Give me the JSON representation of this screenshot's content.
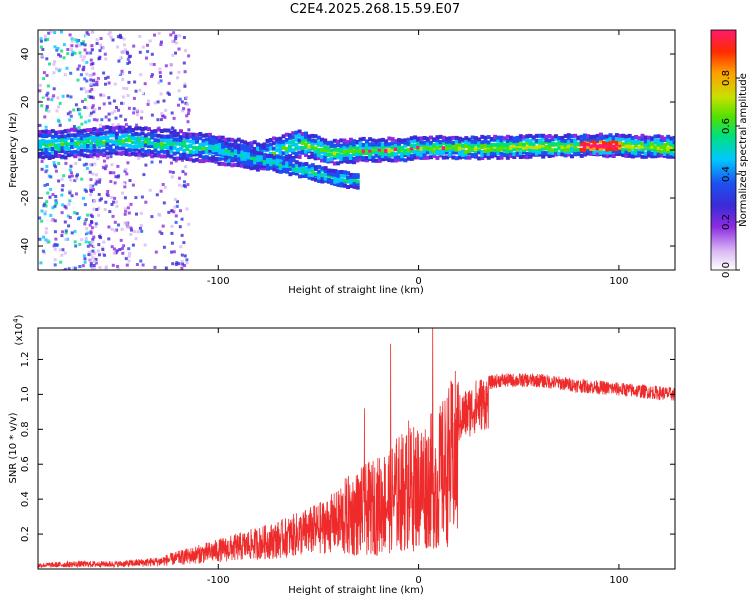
{
  "figure_title": "C2E4.2025.268.15.59.E07",
  "colors": {
    "snr_line": "#ee2a2a",
    "colormap": [
      "#ffffff",
      "#d9b8f4",
      "#8c2be2",
      "#3a2bd6",
      "#1e4ff0",
      "#00c8ff",
      "#00e07a",
      "#55e000",
      "#c8e000",
      "#ffa000",
      "#ff2a00",
      "#ff1a70"
    ]
  },
  "chart_data": [
    {
      "type": "heatmap",
      "name": "spectrogram",
      "xlabel": "Height of straight line (km)",
      "ylabel": "Frequency (Hz)",
      "xlim": [
        -190,
        128
      ],
      "ylim": [
        -50,
        50
      ],
      "xticks": [
        -100,
        0,
        100
      ],
      "yticks": [
        -40,
        -20,
        0,
        20,
        40
      ],
      "xtick_labels": [
        "-100",
        "0",
        "100"
      ],
      "ytick_labels": [
        "-40",
        "-20",
        "0",
        "20",
        "40"
      ],
      "band_center_freq": [
        {
          "x": -190,
          "f": 2
        },
        {
          "x": -150,
          "f": 4
        },
        {
          "x": -120,
          "f": 2
        },
        {
          "x": -100,
          "f": 0
        },
        {
          "x": -80,
          "f": -3
        },
        {
          "x": -60,
          "f": 3
        },
        {
          "x": -45,
          "f": -1
        },
        {
          "x": -25,
          "f": 0
        },
        {
          "x": -10,
          "f": 0
        },
        {
          "x": 0,
          "f": 1
        },
        {
          "x": 30,
          "f": 1
        },
        {
          "x": 90,
          "f": 2
        },
        {
          "x": 128,
          "f": 1
        }
      ],
      "secondary_branch": [
        {
          "x": -105,
          "f": 2
        },
        {
          "x": -90,
          "f": -2
        },
        {
          "x": -75,
          "f": -5
        },
        {
          "x": -60,
          "f": -8
        },
        {
          "x": -40,
          "f": -12
        },
        {
          "x": -30,
          "f": -13
        }
      ],
      "colorbar": {
        "label": "Normalized spectral amplitude",
        "range": [
          0,
          1
        ],
        "ticks": [
          0.0,
          0.2,
          0.4,
          0.6,
          0.8
        ],
        "tick_labels": [
          "0.0",
          "0.2",
          "0.4",
          "0.6",
          "0.8"
        ]
      }
    },
    {
      "type": "line",
      "name": "snr",
      "xlabel": "Height of straight line (km)",
      "ylabel": "SNR (10 * v/v)",
      "y_multiplier": "(x10",
      "y_multiplier_exp": "4",
      "y_multiplier_close": ")",
      "xlim": [
        -190,
        128
      ],
      "ylim": [
        0.0,
        1.38
      ],
      "xticks": [
        -100,
        0,
        100
      ],
      "yticks": [
        0.2,
        0.4,
        0.6,
        0.8,
        1.0,
        1.2
      ],
      "xtick_labels": [
        "-100",
        "0",
        "100"
      ],
      "ytick_labels": [
        "0.2",
        "0.4",
        "0.6",
        "0.8",
        "1.0",
        "1.2"
      ],
      "envelope": [
        {
          "x": -190,
          "y": 0.03
        },
        {
          "x": -170,
          "y": 0.04
        },
        {
          "x": -150,
          "y": 0.04
        },
        {
          "x": -130,
          "y": 0.06
        },
        {
          "x": -110,
          "y": 0.12
        },
        {
          "x": -90,
          "y": 0.18
        },
        {
          "x": -70,
          "y": 0.24
        },
        {
          "x": -50,
          "y": 0.33
        },
        {
          "x": -35,
          "y": 0.43
        },
        {
          "x": -20,
          "y": 0.52
        },
        {
          "x": -10,
          "y": 0.62
        },
        {
          "x": 0,
          "y": 0.68
        },
        {
          "x": 10,
          "y": 0.74
        },
        {
          "x": 20,
          "y": 0.95
        },
        {
          "x": 30,
          "y": 1.05
        },
        {
          "x": 40,
          "y": 1.08
        },
        {
          "x": 60,
          "y": 1.08
        },
        {
          "x": 80,
          "y": 1.05
        },
        {
          "x": 100,
          "y": 1.03
        },
        {
          "x": 128,
          "y": 1.0
        }
      ],
      "spikes": [
        {
          "x": -27,
          "y": 0.92
        },
        {
          "x": -14,
          "y": 1.29
        },
        {
          "x": -5,
          "y": 0.85
        },
        {
          "x": 7,
          "y": 1.38
        },
        {
          "x": 9,
          "y": 0.12
        }
      ]
    }
  ]
}
